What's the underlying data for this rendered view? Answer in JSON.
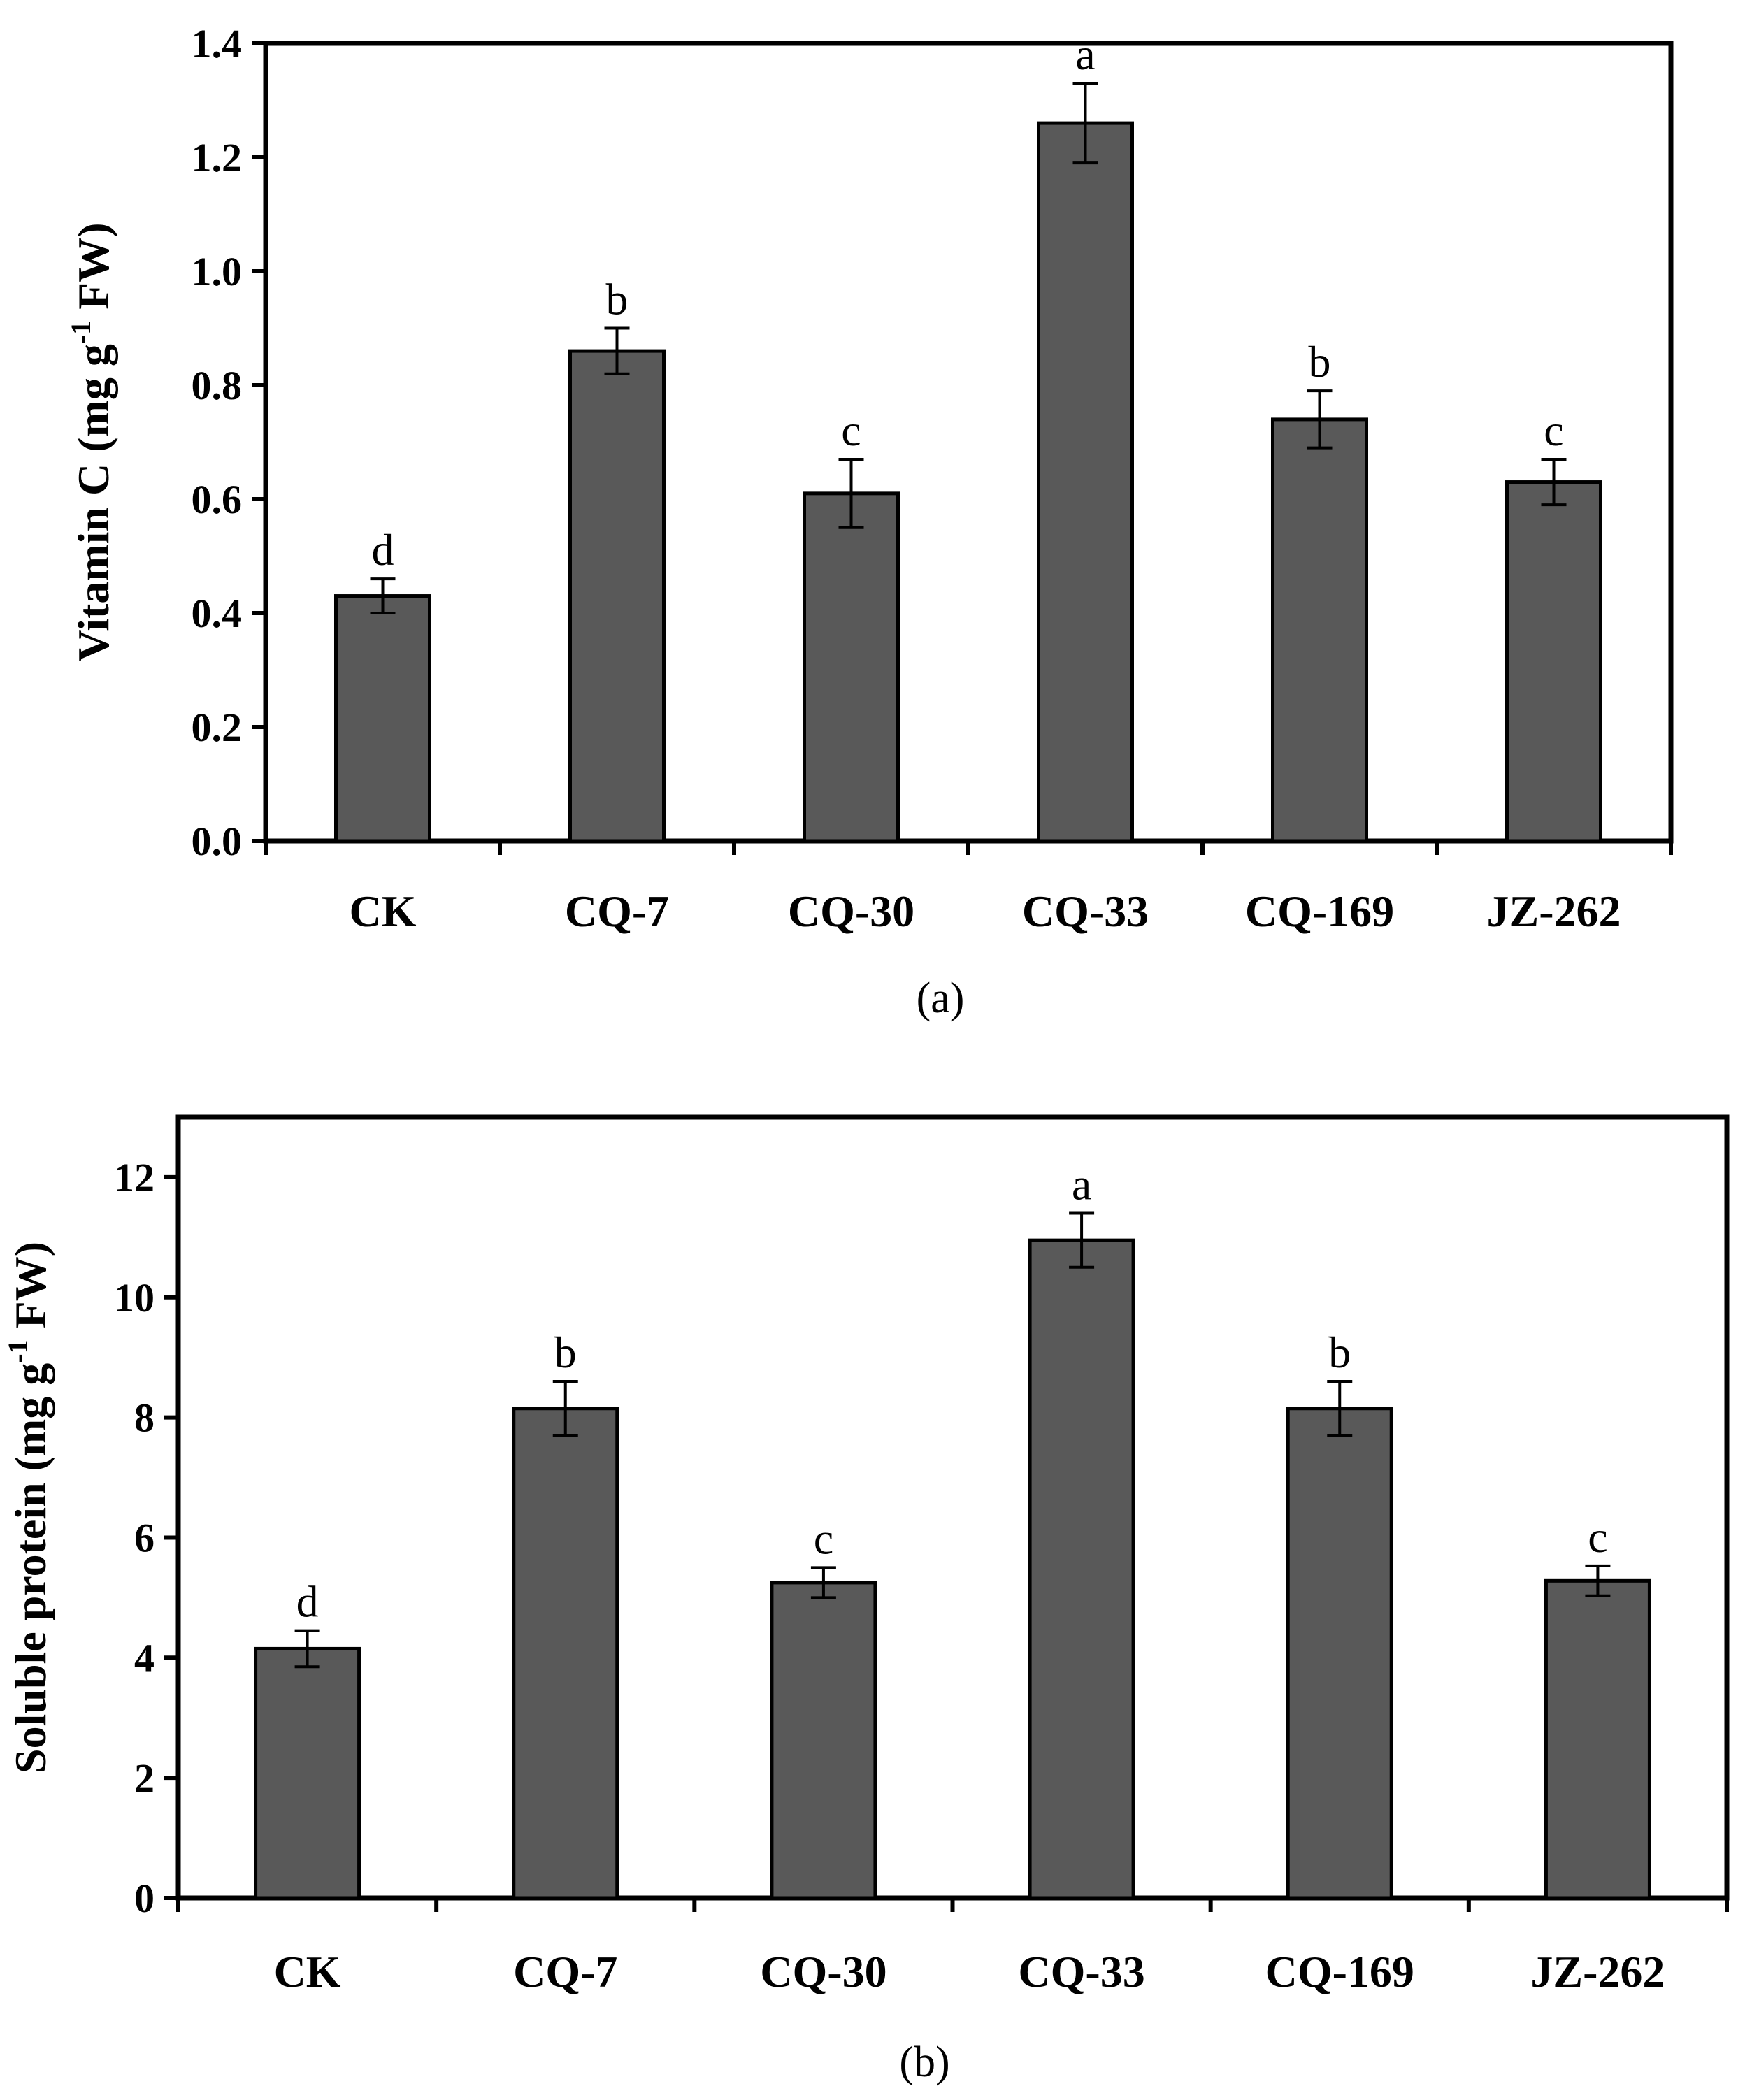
{
  "colors": {
    "bar": "#595959",
    "axis": "#000000",
    "background": "#ffffff"
  },
  "chart_data": [
    {
      "type": "bar",
      "panel_label": "(a)",
      "categories": [
        "CK",
        "CQ-7",
        "CQ-30",
        "CQ-33",
        "CQ-169",
        "JZ-262"
      ],
      "values": [
        0.43,
        0.86,
        0.61,
        1.26,
        0.74,
        0.63
      ],
      "errors": [
        0.03,
        0.04,
        0.06,
        0.07,
        0.05,
        0.04
      ],
      "significance": [
        "d",
        "b",
        "c",
        "a",
        "b",
        "c"
      ],
      "ylabel": {
        "main": "Vitamin C (mg g",
        "sup": "-1",
        "tail": " FW)"
      },
      "ylim": [
        0,
        1.4
      ],
      "yticks": [
        0,
        0.2,
        0.4,
        0.6,
        0.8,
        1.0,
        1.2,
        1.4
      ],
      "ytick_labels": [
        "0.0",
        "0.2",
        "0.4",
        "0.6",
        "0.8",
        "1.0",
        "1.2",
        "1.4"
      ],
      "grid": false
    },
    {
      "type": "bar",
      "panel_label": "(b)",
      "categories": [
        "CK",
        "CQ-7",
        "CQ-30",
        "CQ-33",
        "CQ-169",
        "JZ-262"
      ],
      "values": [
        4.15,
        8.15,
        5.25,
        10.95,
        8.15,
        5.28
      ],
      "errors": [
        0.3,
        0.45,
        0.25,
        0.45,
        0.45,
        0.25
      ],
      "significance": [
        "d",
        "b",
        "c",
        "a",
        "b",
        "c"
      ],
      "ylabel": {
        "main": "Soluble protein (mg g",
        "sup": "-1",
        "tail": " FW)"
      },
      "ylim": [
        0,
        13
      ],
      "yticks": [
        0,
        2,
        4,
        6,
        8,
        10,
        12
      ],
      "ytick_labels": [
        "0",
        "2",
        "4",
        "6",
        "8",
        "10",
        "12"
      ],
      "grid": false
    }
  ]
}
